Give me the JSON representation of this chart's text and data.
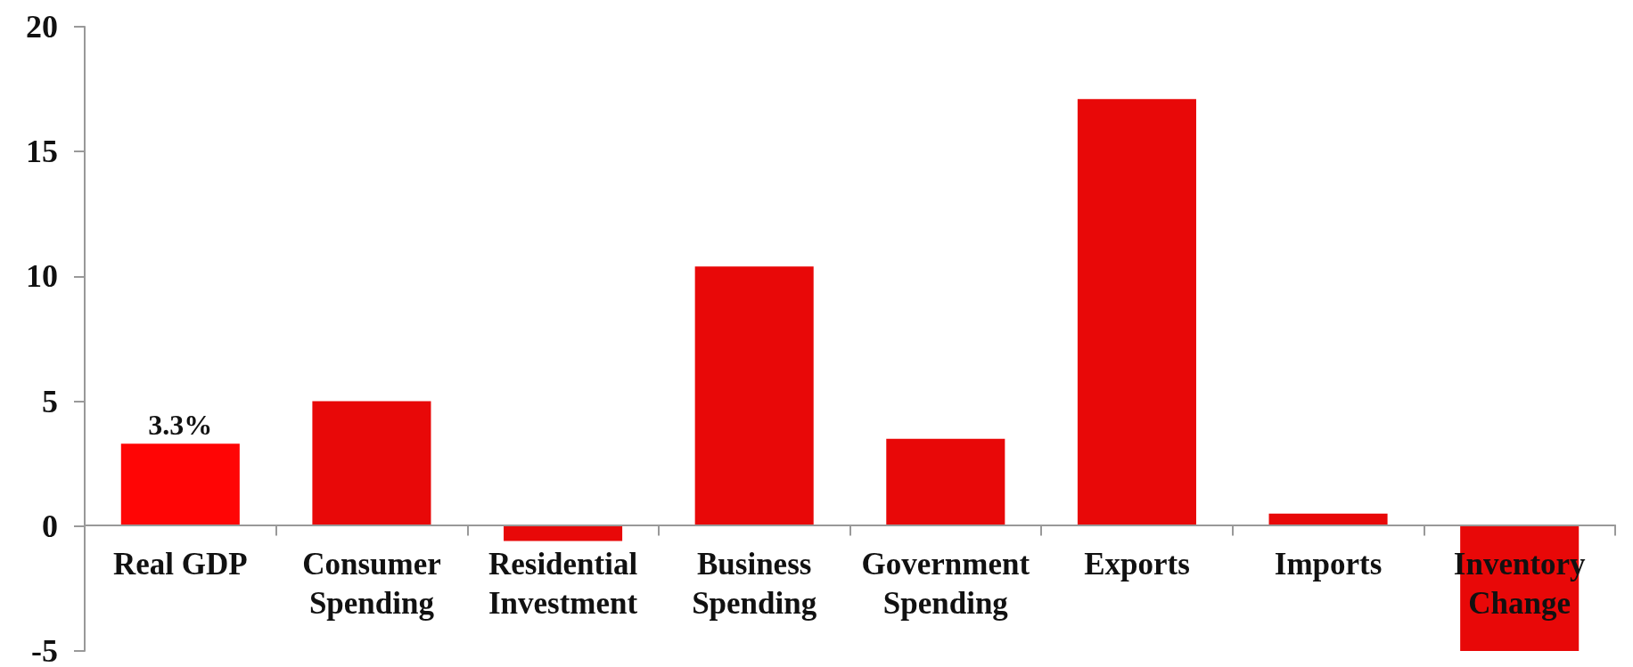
{
  "chart_data": {
    "type": "bar",
    "categories": [
      "Real GDP",
      "Consumer\nSpending",
      "Residential\nInvestment",
      "Business\nSpending",
      "Government\nSpending",
      "Exports",
      "Imports",
      "Inventory\nChange"
    ],
    "values": [
      3.3,
      5.0,
      -0.6,
      10.4,
      3.5,
      17.1,
      0.5,
      -5.0
    ],
    "colors": [
      "#ff0505",
      "#e80808",
      "#e80808",
      "#e80808",
      "#e80808",
      "#e80808",
      "#e80808",
      "#e80808"
    ],
    "value_labels": [
      "3.3%",
      null,
      null,
      null,
      null,
      null,
      null,
      null
    ],
    "ylim": [
      -5,
      20
    ],
    "yticks": [
      -5,
      0,
      5,
      10,
      15,
      20
    ]
  }
}
